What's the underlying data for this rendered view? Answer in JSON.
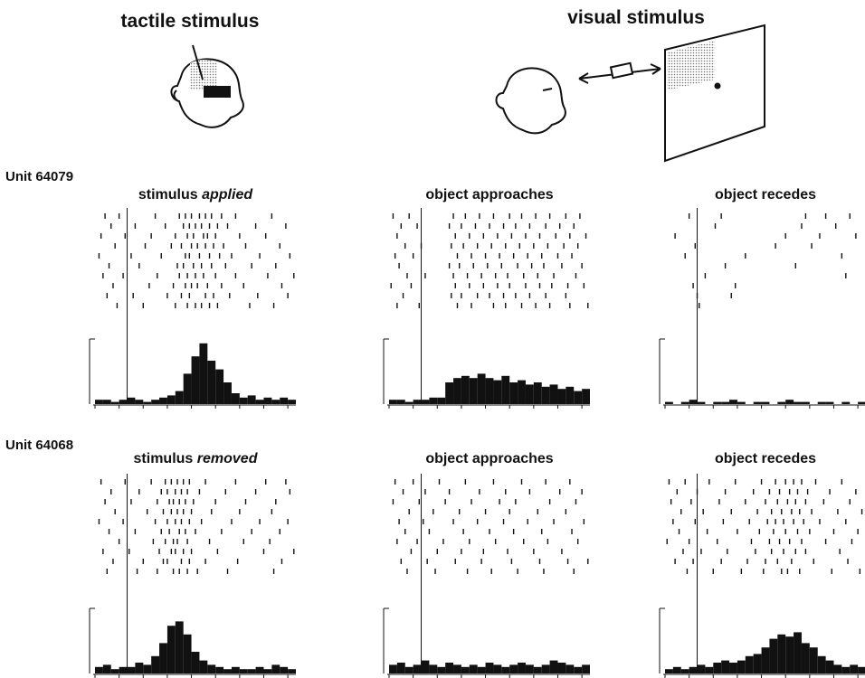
{
  "header": {
    "tactile": "tactile stimulus",
    "visual": "visual stimulus"
  },
  "bins": [
    0,
    4,
    8,
    12,
    16,
    20,
    24,
    28,
    32,
    36,
    40,
    44,
    48,
    52,
    56,
    60,
    64,
    68,
    72,
    76,
    80,
    84,
    88,
    92,
    96,
    100
  ],
  "ylim": [
    0,
    30
  ],
  "units": [
    {
      "label": "Unit 64079",
      "panels": [
        {
          "title": "stimulus",
          "title_em": "applied",
          "onset": 16,
          "counts": [
            2,
            2,
            1,
            2,
            3,
            2,
            1,
            2,
            3,
            4,
            6,
            14,
            22,
            28,
            20,
            16,
            10,
            5,
            3,
            4,
            2,
            3,
            2,
            3,
            2
          ],
          "raster": [
            [
              5,
              12,
              30,
              42,
              45,
              48,
              52,
              55,
              58,
              63,
              70,
              88
            ],
            [
              8,
              20,
              35,
              44,
              47,
              50,
              53,
              57,
              61,
              66,
              80,
              95
            ],
            [
              3,
              15,
              28,
              40,
              46,
              49,
              54,
              56,
              60,
              72,
              85
            ],
            [
              10,
              25,
              38,
              43,
              48,
              51,
              55,
              59,
              64,
              75,
              92
            ],
            [
              2,
              18,
              33,
              45,
              47,
              52,
              57,
              62,
              68,
              82,
              97
            ],
            [
              7,
              22,
              41,
              44,
              49,
              53,
              58,
              65,
              78,
              90
            ],
            [
              4,
              14,
              31,
              42,
              46,
              50,
              54,
              60,
              70,
              86,
              99
            ],
            [
              9,
              27,
              39,
              45,
              48,
              51,
              56,
              63,
              74,
              93
            ],
            [
              6,
              19,
              36,
              43,
              47,
              55,
              59,
              67,
              81,
              96
            ],
            [
              11,
              24,
              40,
              46,
              50,
              53,
              57,
              61,
              77,
              89
            ]
          ]
        },
        {
          "title": "object approaches",
          "onset": 16,
          "counts": [
            2,
            2,
            1,
            2,
            2,
            3,
            3,
            10,
            12,
            13,
            12,
            14,
            12,
            11,
            13,
            10,
            11,
            9,
            10,
            8,
            9,
            7,
            8,
            6,
            7
          ],
          "raster": [
            [
              2,
              10,
              32,
              38,
              45,
              52,
              60,
              66,
              73,
              80,
              88,
              95
            ],
            [
              6,
              14,
              30,
              36,
              43,
              50,
              57,
              63,
              70,
              78,
              85,
              92
            ],
            [
              4,
              33,
              40,
              47,
              54,
              61,
              68,
              75,
              83,
              90,
              98
            ],
            [
              8,
              16,
              31,
              37,
              44,
              51,
              58,
              65,
              72,
              79,
              87,
              94
            ],
            [
              3,
              12,
              34,
              41,
              48,
              55,
              62,
              69,
              76,
              84,
              91
            ],
            [
              5,
              30,
              35,
              42,
              49,
              56,
              64,
              71,
              77,
              86,
              96
            ],
            [
              9,
              18,
              32,
              39,
              46,
              53,
              59,
              67,
              74,
              82,
              93
            ],
            [
              1,
              11,
              33,
              40,
              47,
              54,
              60,
              68,
              75,
              81,
              89,
              97
            ],
            [
              7,
              31,
              36,
              44,
              50,
              57,
              63,
              70,
              78,
              88
            ],
            [
              4,
              15,
              34,
              41,
              52,
              58,
              66,
              73,
              80,
              90,
              99
            ]
          ]
        },
        {
          "title": "object recedes",
          "onset": 16,
          "counts": [
            1,
            0,
            1,
            2,
            1,
            0,
            1,
            1,
            2,
            1,
            0,
            1,
            1,
            0,
            1,
            2,
            1,
            1,
            0,
            1,
            1,
            0,
            1,
            0,
            1
          ],
          "raster": [
            [
              12,
              28,
              70,
              80,
              92
            ],
            [
              25,
              68,
              85
            ],
            [
              5,
              60,
              77,
              95
            ],
            [
              15,
              55,
              73
            ],
            [
              10,
              40,
              88
            ],
            [
              30,
              65
            ],
            [
              20,
              90
            ],
            [
              14,
              35
            ],
            [
              16,
              33
            ],
            [
              17
            ]
          ]
        }
      ]
    },
    {
      "label": "Unit 64068",
      "panels": [
        {
          "title": "stimulus",
          "title_em": "removed",
          "onset": 16,
          "counts": [
            3,
            4,
            2,
            3,
            3,
            5,
            4,
            8,
            14,
            22,
            24,
            18,
            10,
            6,
            4,
            3,
            2,
            3,
            2,
            2,
            3,
            2,
            4,
            3,
            2
          ],
          "raster": [
            [
              3,
              15,
              28,
              35,
              38,
              41,
              44,
              47,
              55,
              70,
              85,
              95
            ],
            [
              8,
              22,
              33,
              36,
              40,
              43,
              46,
              52,
              65,
              80,
              97
            ],
            [
              5,
              18,
              31,
              37,
              39,
              42,
              45,
              49,
              60,
              75,
              90
            ],
            [
              10,
              26,
              34,
              38,
              41,
              44,
              48,
              58,
              72,
              88
            ],
            [
              2,
              14,
              30,
              36,
              40,
              43,
              47,
              53,
              68,
              82,
              96
            ],
            [
              7,
              20,
              33,
              37,
              42,
              45,
              50,
              63,
              78,
              92
            ],
            [
              12,
              29,
              35,
              39,
              41,
              46,
              57,
              74,
              87
            ],
            [
              4,
              17,
              32,
              38,
              40,
              44,
              48,
              61,
              84,
              99
            ],
            [
              9,
              24,
              34,
              36,
              43,
              47,
              55,
              71,
              93
            ],
            [
              6,
              21,
              31,
              39,
              42,
              46,
              51,
              66,
              89
            ]
          ]
        },
        {
          "title": "object approaches",
          "onset": 16,
          "counts": [
            4,
            5,
            3,
            4,
            6,
            4,
            3,
            5,
            4,
            3,
            4,
            3,
            5,
            4,
            3,
            4,
            5,
            4,
            3,
            4,
            6,
            5,
            4,
            3,
            4
          ],
          "raster": [
            [
              3,
              12,
              25,
              38,
              52,
              66,
              78,
              90
            ],
            [
              7,
              18,
              30,
              45,
              58,
              70,
              85,
              96
            ],
            [
              2,
              15,
              28,
              41,
              55,
              63,
              80,
              93
            ],
            [
              10,
              22,
              35,
              48,
              60,
              74,
              88
            ],
            [
              5,
              17,
              32,
              44,
              57,
              69,
              82,
              97
            ],
            [
              8,
              20,
              37,
              50,
              62,
              76,
              91
            ],
            [
              4,
              14,
              27,
              40,
              53,
              67,
              79,
              94
            ],
            [
              11,
              24,
              36,
              47,
              59,
              72,
              86
            ],
            [
              6,
              19,
              33,
              46,
              61,
              75,
              89,
              99
            ],
            [
              9,
              23,
              39,
              51,
              64,
              77,
              92
            ]
          ]
        },
        {
          "title": "object recedes",
          "onset": 16,
          "counts": [
            2,
            3,
            2,
            3,
            4,
            3,
            5,
            6,
            5,
            6,
            8,
            9,
            12,
            16,
            18,
            17,
            19,
            14,
            12,
            8,
            6,
            4,
            3,
            4,
            3
          ],
          "raster": [
            [
              2,
              10,
              22,
              35,
              48,
              55,
              60,
              64,
              68,
              75,
              88
            ],
            [
              6,
              16,
              30,
              44,
              52,
              57,
              62,
              66,
              71,
              82,
              95
            ],
            [
              3,
              13,
              27,
              40,
              50,
              56,
              61,
              65,
              70,
              79,
              92
            ],
            [
              8,
              19,
              33,
              46,
              53,
              58,
              63,
              67,
              73,
              86,
              98
            ],
            [
              4,
              15,
              29,
              42,
              51,
              55,
              59,
              64,
              69,
              77,
              90
            ],
            [
              7,
              21,
              36,
              47,
              54,
              60,
              66,
              72,
              84,
              96
            ],
            [
              1,
              12,
              26,
              43,
              52,
              57,
              62,
              68,
              80,
              93
            ],
            [
              9,
              18,
              31,
              45,
              53,
              59,
              65,
              70,
              87
            ],
            [
              5,
              14,
              28,
              41,
              50,
              56,
              63,
              74,
              91
            ],
            [
              11,
              24,
              38,
              49,
              58,
              61,
              67,
              83,
              97
            ]
          ]
        }
      ]
    }
  ]
}
